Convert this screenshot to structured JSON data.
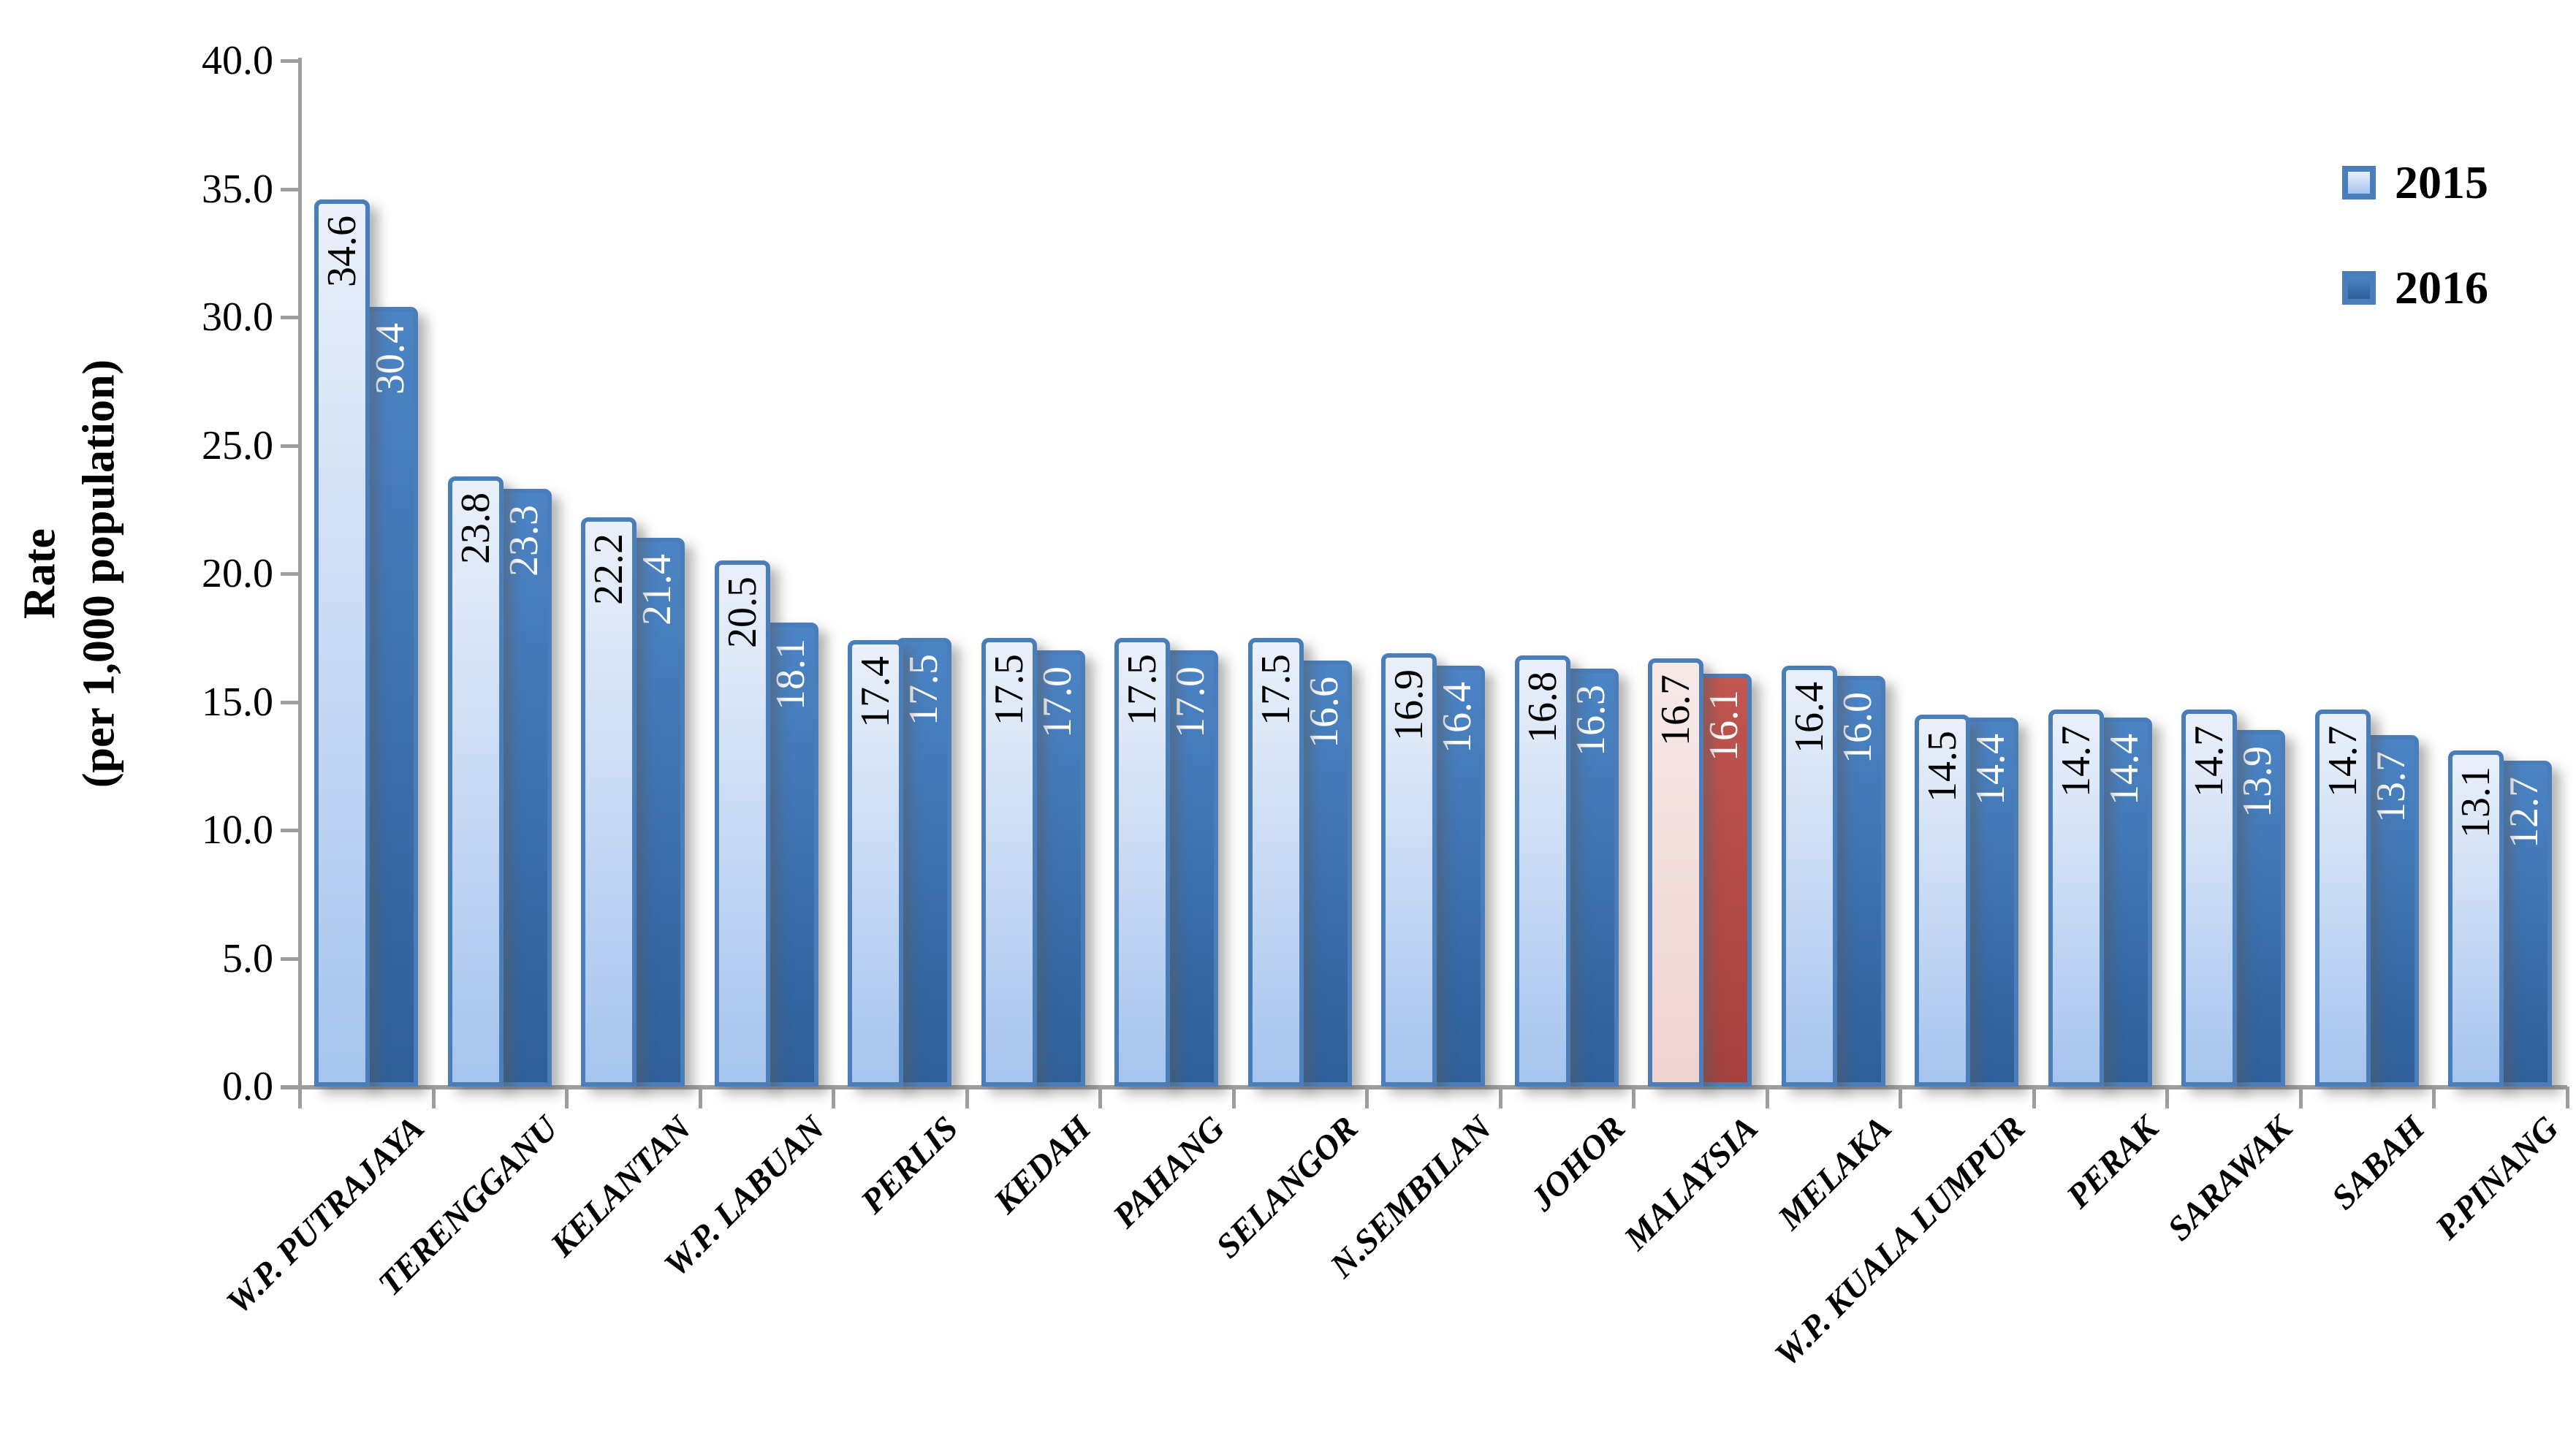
{
  "chart_data": {
    "type": "bar",
    "ylabel_line1": "Rate",
    "ylabel_line2": "(per 1,000 population)",
    "ylim": [
      0,
      40
    ],
    "ytick_step": 5,
    "ytick_labels": [
      "0.0",
      "5.0",
      "10.0",
      "15.0",
      "20.0",
      "25.0",
      "30.0",
      "35.0",
      "40.0"
    ],
    "grid": "off",
    "legend_position": "top-right",
    "categories": [
      "W.P. PUTRAJAYA",
      "TERENGGANU",
      "KELANTAN",
      "W.P. LABUAN",
      "PERLIS",
      "KEDAH",
      "PAHANG",
      "SELANGOR",
      "N.SEMBILAN",
      "JOHOR",
      "MALAYSIA",
      "MELAKA",
      "W.P. KUALA LUMPUR",
      "PERAK",
      "SARAWAK",
      "SABAH",
      "P.PINANG"
    ],
    "series": [
      {
        "name": "2015",
        "values": [
          34.6,
          23.8,
          22.2,
          20.5,
          17.4,
          17.5,
          17.5,
          17.5,
          16.9,
          16.8,
          16.7,
          16.4,
          14.5,
          14.7,
          14.7,
          14.7,
          13.1
        ]
      },
      {
        "name": "2016",
        "values": [
          30.4,
          23.3,
          21.4,
          18.1,
          17.5,
          17.0,
          17.0,
          16.6,
          16.4,
          16.3,
          16.1,
          16.0,
          14.4,
          14.4,
          13.9,
          13.7,
          12.7
        ]
      }
    ],
    "highlight_category": "MALAYSIA",
    "colors": {
      "bar_2015_top": "#eaf0fa",
      "bar_2015_bottom": "#a6c4ee",
      "bar_2016_top": "#4c84c5",
      "bar_2016_bottom": "#2e5f98",
      "highlight_2015_top": "#f7e9e7",
      "highlight_2015_bottom": "#eed3d0",
      "highlight_2016_top": "#c05551",
      "highlight_2016_bottom": "#a54240",
      "bar_border": "#4a7ebb",
      "label_2015": "#000000",
      "label_2016": "#ffffff",
      "axis": "#9e9e9e"
    }
  }
}
